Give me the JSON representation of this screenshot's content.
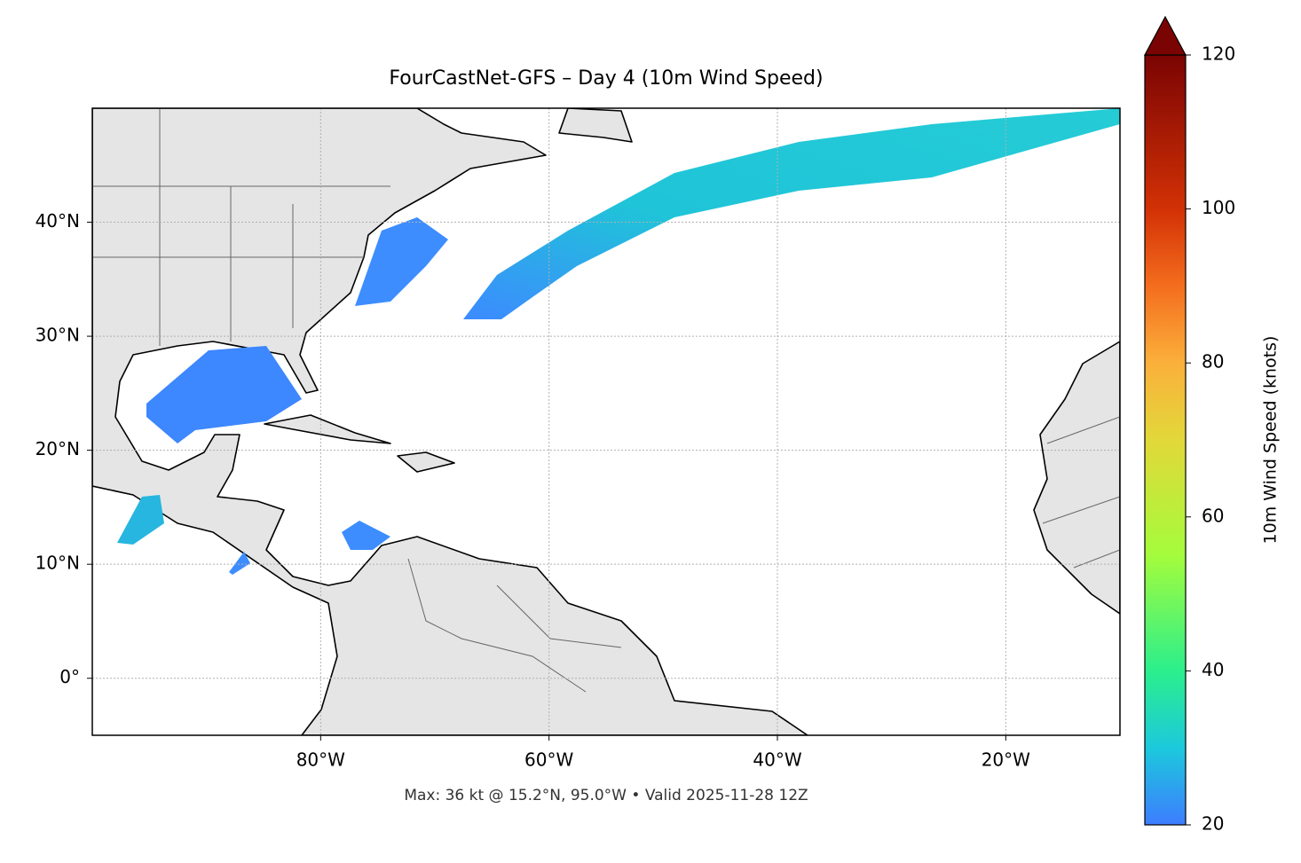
{
  "title": "FourCastNet-GFS – Day 4 (10m Wind Speed)",
  "footer": "Max: 36 kt @ 15.2°N, 95.0°W • Valid 2025-11-28 12Z",
  "map": {
    "xlim": [
      -100,
      -10
    ],
    "ylim": [
      -5,
      50
    ],
    "xticks": [
      {
        "value": -80,
        "label": "80°W"
      },
      {
        "value": -60,
        "label": "60°W"
      },
      {
        "value": -40,
        "label": "40°W"
      },
      {
        "value": -20,
        "label": "20°W"
      }
    ],
    "yticks": [
      {
        "value": 0,
        "label": "0°"
      },
      {
        "value": 10,
        "label": "10°N"
      },
      {
        "value": 20,
        "label": "20°N"
      },
      {
        "value": 30,
        "label": "30°N"
      },
      {
        "value": 40,
        "label": "40°N"
      }
    ],
    "grid": true
  },
  "colorbar": {
    "label": "10m Wind Speed (knots)",
    "lim": [
      20,
      120
    ],
    "ticks": [
      20,
      40,
      60,
      80,
      100,
      120
    ]
  }
}
